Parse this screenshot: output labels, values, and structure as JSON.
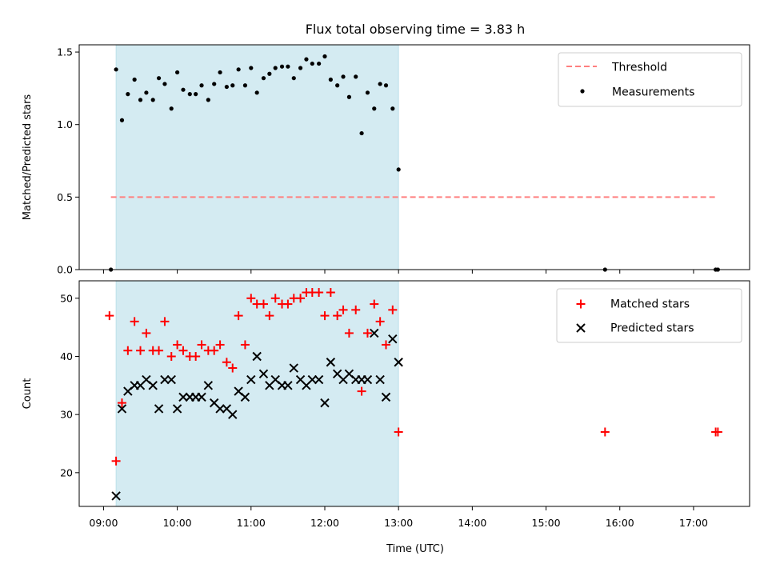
{
  "chart_data": {
    "title": "Flux total observing time = 3.83 h",
    "xlabel": "Time (UTC)",
    "x_unit": "hours UTC",
    "x_range": [
      8.67,
      17.76
    ],
    "x_ticks": [
      9,
      10,
      11,
      12,
      13,
      14,
      15,
      16,
      17
    ],
    "x_tick_labels": [
      "09:00",
      "10:00",
      "11:00",
      "12:00",
      "13:00",
      "14:00",
      "15:00",
      "16:00",
      "17:00"
    ],
    "observing_window": {
      "start": 9.17,
      "end": 13.0,
      "color": "#add8e6"
    },
    "panels": [
      {
        "id": "ratio",
        "type": "scatter",
        "ylabel": "Matched/Predicted stars",
        "ylim": [
          0,
          1.55
        ],
        "y_ticks": [
          0.0,
          0.5,
          1.0,
          1.5
        ],
        "y_tick_labels": [
          "0.0",
          "0.5",
          "1.0",
          "1.5"
        ],
        "legend_position": "upper-right",
        "series": [
          {
            "name": "Threshold",
            "kind": "dashed-line",
            "color": "#ff7f7f",
            "x": [
              9.1,
              17.3
            ],
            "y": [
              0.5,
              0.5
            ]
          },
          {
            "name": "Measurements",
            "kind": "dot",
            "color": "#000000",
            "x": [
              9.1,
              9.17,
              9.25,
              9.33,
              9.42,
              9.5,
              9.58,
              9.67,
              9.75,
              9.83,
              9.92,
              10.0,
              10.08,
              10.17,
              10.25,
              10.33,
              10.42,
              10.5,
              10.58,
              10.67,
              10.75,
              10.83,
              10.92,
              11.0,
              11.08,
              11.17,
              11.25,
              11.33,
              11.42,
              11.5,
              11.58,
              11.67,
              11.75,
              11.83,
              11.92,
              12.0,
              12.08,
              12.17,
              12.25,
              12.33,
              12.42,
              12.5,
              12.58,
              12.67,
              12.75,
              12.83,
              12.92,
              13.0,
              15.8,
              17.3,
              17.33
            ],
            "y": [
              0.0,
              1.38,
              1.03,
              1.21,
              1.31,
              1.17,
              1.22,
              1.17,
              1.32,
              1.28,
              1.11,
              1.36,
              1.24,
              1.21,
              1.21,
              1.27,
              1.17,
              1.28,
              1.36,
              1.26,
              1.27,
              1.38,
              1.27,
              1.39,
              1.22,
              1.32,
              1.35,
              1.39,
              1.4,
              1.4,
              1.32,
              1.39,
              1.45,
              1.42,
              1.42,
              1.47,
              1.31,
              1.27,
              1.33,
              1.19,
              1.33,
              0.94,
              1.22,
              1.11,
              1.28,
              1.27,
              1.11,
              0.69,
              0.0,
              0.0,
              0.0
            ]
          }
        ]
      },
      {
        "id": "counts",
        "type": "scatter",
        "ylabel": "Count",
        "ylim": [
          14.2,
          53.0
        ],
        "y_ticks": [
          20,
          30,
          40,
          50
        ],
        "y_tick_labels": [
          "20",
          "30",
          "40",
          "50"
        ],
        "legend_position": "upper-right",
        "series": [
          {
            "name": "Matched stars",
            "kind": "plus",
            "color": "#ff0000",
            "x": [
              9.08,
              9.17,
              9.25,
              9.33,
              9.42,
              9.5,
              9.58,
              9.67,
              9.75,
              9.83,
              9.92,
              10.0,
              10.08,
              10.17,
              10.25,
              10.33,
              10.42,
              10.5,
              10.58,
              10.67,
              10.75,
              10.83,
              10.92,
              11.0,
              11.08,
              11.17,
              11.25,
              11.33,
              11.42,
              11.5,
              11.58,
              11.67,
              11.75,
              11.83,
              11.92,
              12.0,
              12.08,
              12.17,
              12.25,
              12.33,
              12.42,
              12.5,
              12.58,
              12.67,
              12.75,
              12.83,
              12.92,
              13.0,
              15.8,
              17.3,
              17.33
            ],
            "y": [
              47,
              22,
              32,
              41,
              46,
              41,
              44,
              41,
              41,
              46,
              40,
              42,
              41,
              40,
              40,
              42,
              41,
              41,
              42,
              39,
              38,
              47,
              42,
              50,
              49,
              49,
              47,
              50,
              49,
              49,
              50,
              50,
              51,
              51,
              51,
              47,
              51,
              47,
              48,
              44,
              48,
              34,
              44,
              49,
              46,
              42,
              48,
              27,
              27,
              27,
              27
            ]
          },
          {
            "name": "Predicted stars",
            "kind": "x",
            "color": "#000000",
            "x": [
              9.17,
              9.25,
              9.33,
              9.42,
              9.5,
              9.58,
              9.67,
              9.75,
              9.83,
              9.92,
              10.0,
              10.08,
              10.17,
              10.25,
              10.33,
              10.42,
              10.5,
              10.58,
              10.67,
              10.75,
              10.83,
              10.92,
              11.0,
              11.08,
              11.17,
              11.25,
              11.33,
              11.42,
              11.5,
              11.58,
              11.67,
              11.75,
              11.83,
              11.92,
              12.0,
              12.08,
              12.17,
              12.25,
              12.33,
              12.42,
              12.5,
              12.58,
              12.67,
              12.75,
              12.83,
              12.92,
              13.0
            ],
            "y": [
              16,
              31,
              34,
              35,
              35,
              36,
              35,
              31,
              36,
              36,
              31,
              33,
              33,
              33,
              33,
              35,
              32,
              31,
              31,
              30,
              34,
              33,
              36,
              40,
              37,
              35,
              36,
              35,
              35,
              38,
              36,
              35,
              36,
              36,
              32,
              39,
              37,
              36,
              37,
              36,
              36,
              36,
              44,
              36,
              33,
              43,
              39
            ]
          }
        ]
      }
    ]
  }
}
